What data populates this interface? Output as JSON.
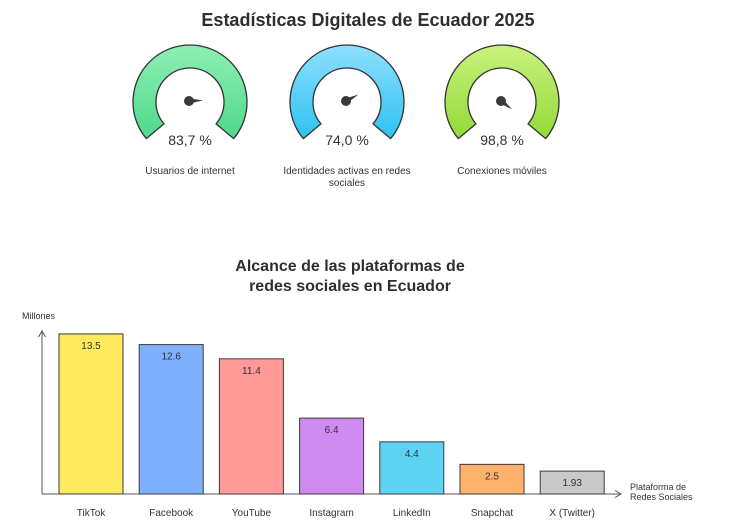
{
  "title": "Estadísticas Digitales de Ecuador 2025",
  "gauges": [
    {
      "value_text": "83,7 %",
      "value": 83.7,
      "label": "Usuarios de internet",
      "color_start": "#8EEFB3",
      "color_end": "#4FD98C"
    },
    {
      "value_text": "74,0 %",
      "value": 74.0,
      "label": "Identidades activas en redes sociales",
      "color_start": "#8FDFFF",
      "color_end": "#2EC2F2"
    },
    {
      "value_text": "98,8 %",
      "value": 98.8,
      "label": "Conexiones móviles",
      "color_start": "#C9F27E",
      "color_end": "#93DA38"
    }
  ],
  "chart_data": {
    "type": "bar",
    "title_lines": [
      "Alcance de las plataformas de",
      "redes sociales en Ecuador"
    ],
    "ylabel": "Millones",
    "xlabel_lines": [
      "Plataforma de",
      "Redes Sociales"
    ],
    "categories": [
      "TikTok",
      "Facebook",
      "YouTube",
      "Instagram",
      "LinkedIn",
      "Snapchat",
      "X (Twitter)"
    ],
    "values": [
      13.5,
      12.6,
      11.4,
      6.4,
      4.4,
      2.5,
      1.93
    ],
    "value_labels": [
      "13.5",
      "12.6",
      "11.4",
      "6.4",
      "4.4",
      "2.5",
      "1.93"
    ],
    "colors": [
      "#FFE95C",
      "#7EB0FF",
      "#FF9A98",
      "#D08BF2",
      "#5DD3F3",
      "#FFB06A",
      "#C9C9C9"
    ],
    "ylim": [
      0,
      14
    ],
    "grid": false
  }
}
